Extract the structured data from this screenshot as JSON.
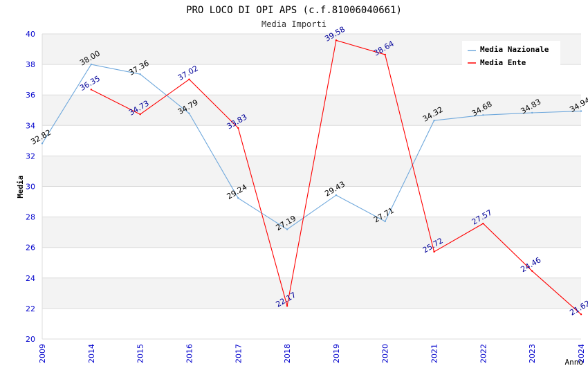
{
  "chart_data": {
    "type": "line",
    "title": "PRO LOCO DI OPI APS (c.f.81006040661)",
    "subtitle": "Media Importi",
    "xlabel": "Anno",
    "ylabel": "Media",
    "ylim": [
      20,
      40
    ],
    "yticks": [
      20,
      22,
      24,
      26,
      28,
      30,
      32,
      34,
      36,
      38,
      40
    ],
    "categories": [
      "2009",
      "2014",
      "2015",
      "2016",
      "2017",
      "2018",
      "2019",
      "2020",
      "2021",
      "2022",
      "2023",
      "2024"
    ],
    "legend_position": "top-right",
    "series": [
      {
        "name": "Media Nazionale",
        "color": "#6fa8dc",
        "values": [
          32.82,
          38.0,
          37.36,
          34.79,
          29.24,
          27.19,
          29.43,
          27.71,
          34.32,
          34.68,
          34.83,
          34.94
        ],
        "labels": [
          "32.82",
          "38.00",
          "37.36",
          "34.79",
          "29.24",
          "27.19",
          "29.43",
          "27.71",
          "34.32",
          "34.68",
          "34.83",
          "34.94"
        ]
      },
      {
        "name": "Media Ente",
        "color": "#ff0000",
        "values": [
          null,
          36.35,
          34.73,
          37.02,
          33.83,
          22.17,
          39.58,
          38.64,
          25.72,
          27.57,
          24.46,
          21.62
        ],
        "labels": [
          null,
          "36.35",
          "34.73",
          "37.02",
          "33.83",
          "22.17",
          "39.58",
          "38.64",
          "25.72",
          "27.57",
          "24.46",
          "21.62"
        ]
      }
    ]
  }
}
